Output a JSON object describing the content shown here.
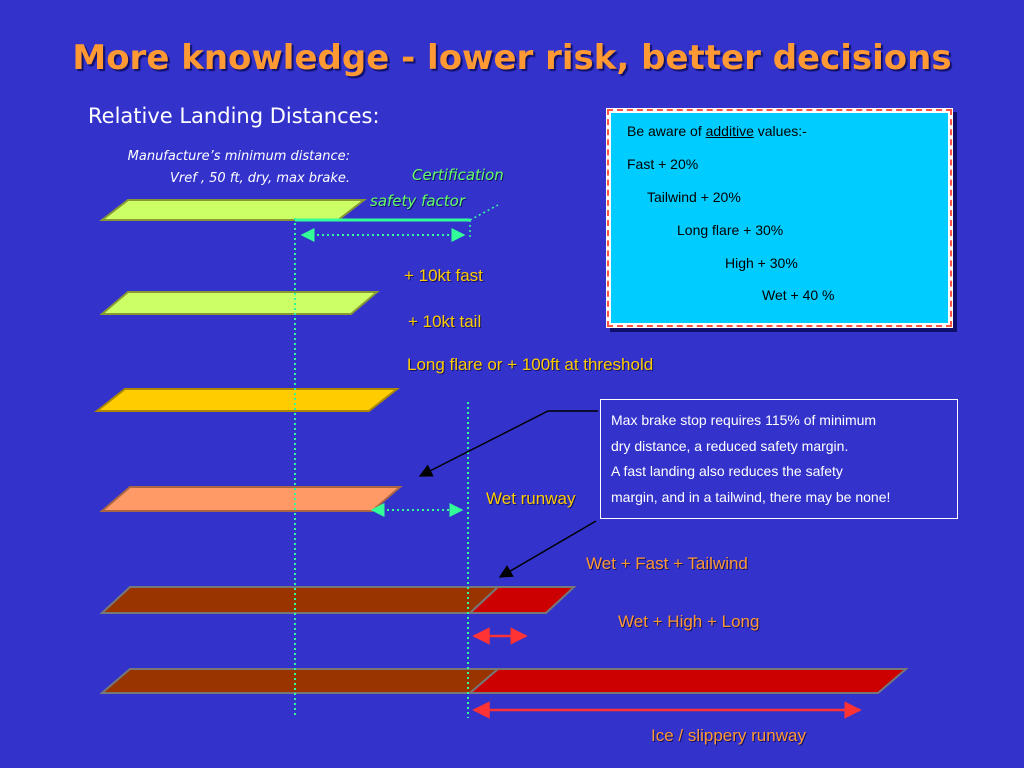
{
  "title": "More knowledge - lower risk, better decisions",
  "subtitle": "Relative Landing Distances:",
  "manufacturer": {
    "line1": "Manufacture’s minimum distance:",
    "line2": "Vref , 50 ft,  dry,  max brake."
  },
  "certification": {
    "line1": "Certification",
    "line2": "safety factor"
  },
  "labels": {
    "fast": "+ 10kt fast",
    "tail": "+ 10kt tail",
    "long_flare": "Long flare or + 100ft at threshold",
    "wet": "Wet runway",
    "wet_fast_tail": "Wet + Fast + Tailwind",
    "wet_high_long": "Wet + High + Long",
    "ice": "Ice / slippery runway"
  },
  "aware_box": {
    "prefix": "Be aware of ",
    "underlined": "additive",
    "suffix": " values:-",
    "items": [
      "Fast + 20%",
      "Tailwind + 20%",
      "Long flare + 30%",
      "High + 30%",
      "Wet + 40 %"
    ]
  },
  "brake_box": {
    "lines": [
      "Max brake stop requires 115% of minimum",
      "dry distance, a reduced safety margin.",
      "A fast landing also reduces the safety",
      "margin, and in a tailwind, there may be none!"
    ]
  },
  "colors": {
    "background": "#3333cc",
    "title": "#ff9933",
    "runway_dry": "#ccff66",
    "runway_long_flare": "#ffcc00",
    "runway_wet": "#ff9966",
    "runway_contaminated": "#993300",
    "excess": "#cc0000",
    "reference_lines": "#33ff99",
    "info_box": "#00ccff"
  }
}
